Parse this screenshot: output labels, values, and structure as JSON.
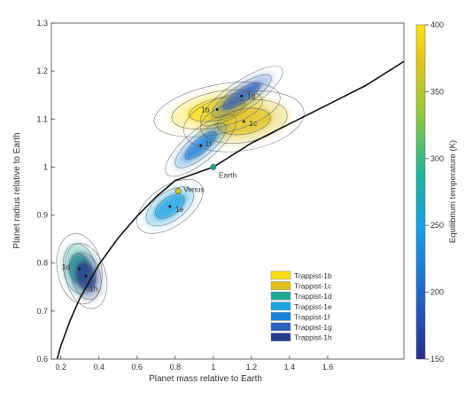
{
  "chart_data": {
    "type": "scatter",
    "xlabel": "Planet mass relative to Earth",
    "ylabel": "Planet radius relative to Earth",
    "xlim": [
      0.15,
      2.0
    ],
    "ylim": [
      0.6,
      1.3
    ],
    "x_ticks": [
      "0.2",
      "0.4",
      "0.6",
      "0.8",
      "1",
      "1.2",
      "1.4",
      "1.6"
    ],
    "y_ticks": [
      "0.6",
      "0.7",
      "0.8",
      "0.9",
      "1",
      "1.1",
      "1.2",
      "1.3"
    ],
    "colorbar": {
      "label": "Equilibrium temperature (K)",
      "min": 150,
      "max": 400,
      "ticks": [
        "150",
        "200",
        "250",
        "300",
        "350",
        "400"
      ]
    },
    "curve": {
      "points": [
        [
          0.18,
          0.6
        ],
        [
          0.2,
          0.628
        ],
        [
          0.25,
          0.682
        ],
        [
          0.3,
          0.727
        ],
        [
          0.4,
          0.797
        ],
        [
          0.5,
          0.852
        ],
        [
          0.6,
          0.898
        ],
        [
          0.7,
          0.938
        ],
        [
          0.8,
          0.972
        ],
        [
          1.0,
          1.0
        ],
        [
          1.2,
          1.05
        ],
        [
          1.4,
          1.09
        ],
        [
          1.6,
          1.13
        ],
        [
          1.8,
          1.17
        ],
        [
          2.0,
          1.22
        ]
      ]
    },
    "reference_points": [
      {
        "label": "Earth",
        "x": 1.0,
        "y": 1.0,
        "color": "#22a89a"
      },
      {
        "label": "Venus",
        "x": 0.815,
        "y": 0.95,
        "color": "#c7c834"
      }
    ],
    "planets": [
      {
        "name": "Trappist-1b",
        "label": "1b",
        "x": 1.02,
        "y": 1.12,
        "color": "#f7dc14",
        "temp": 400
      },
      {
        "name": "Trappist-1c",
        "label": "1c",
        "x": 1.16,
        "y": 1.095,
        "color": "#e0c21a",
        "temp": 342
      },
      {
        "name": "Trappist-1d",
        "label": "1d",
        "x": 0.297,
        "y": 0.788,
        "color": "#21a896",
        "temp": 288
      },
      {
        "name": "Trappist-1e",
        "label": "1e",
        "x": 0.772,
        "y": 0.918,
        "color": "#1aa3e0",
        "temp": 251
      },
      {
        "name": "Trappist-1f",
        "label": "1f",
        "x": 0.934,
        "y": 1.045,
        "color": "#1a7fd6",
        "temp": 219
      },
      {
        "name": "Trappist-1g",
        "label": "1g",
        "x": 1.148,
        "y": 1.148,
        "color": "#2b5fc0",
        "temp": 198
      },
      {
        "name": "Trappist-1h",
        "label": "1h",
        "x": 0.331,
        "y": 0.773,
        "color": "#283a8c",
        "temp": 168
      }
    ],
    "legend_position": "bottom-right",
    "grid": false
  }
}
